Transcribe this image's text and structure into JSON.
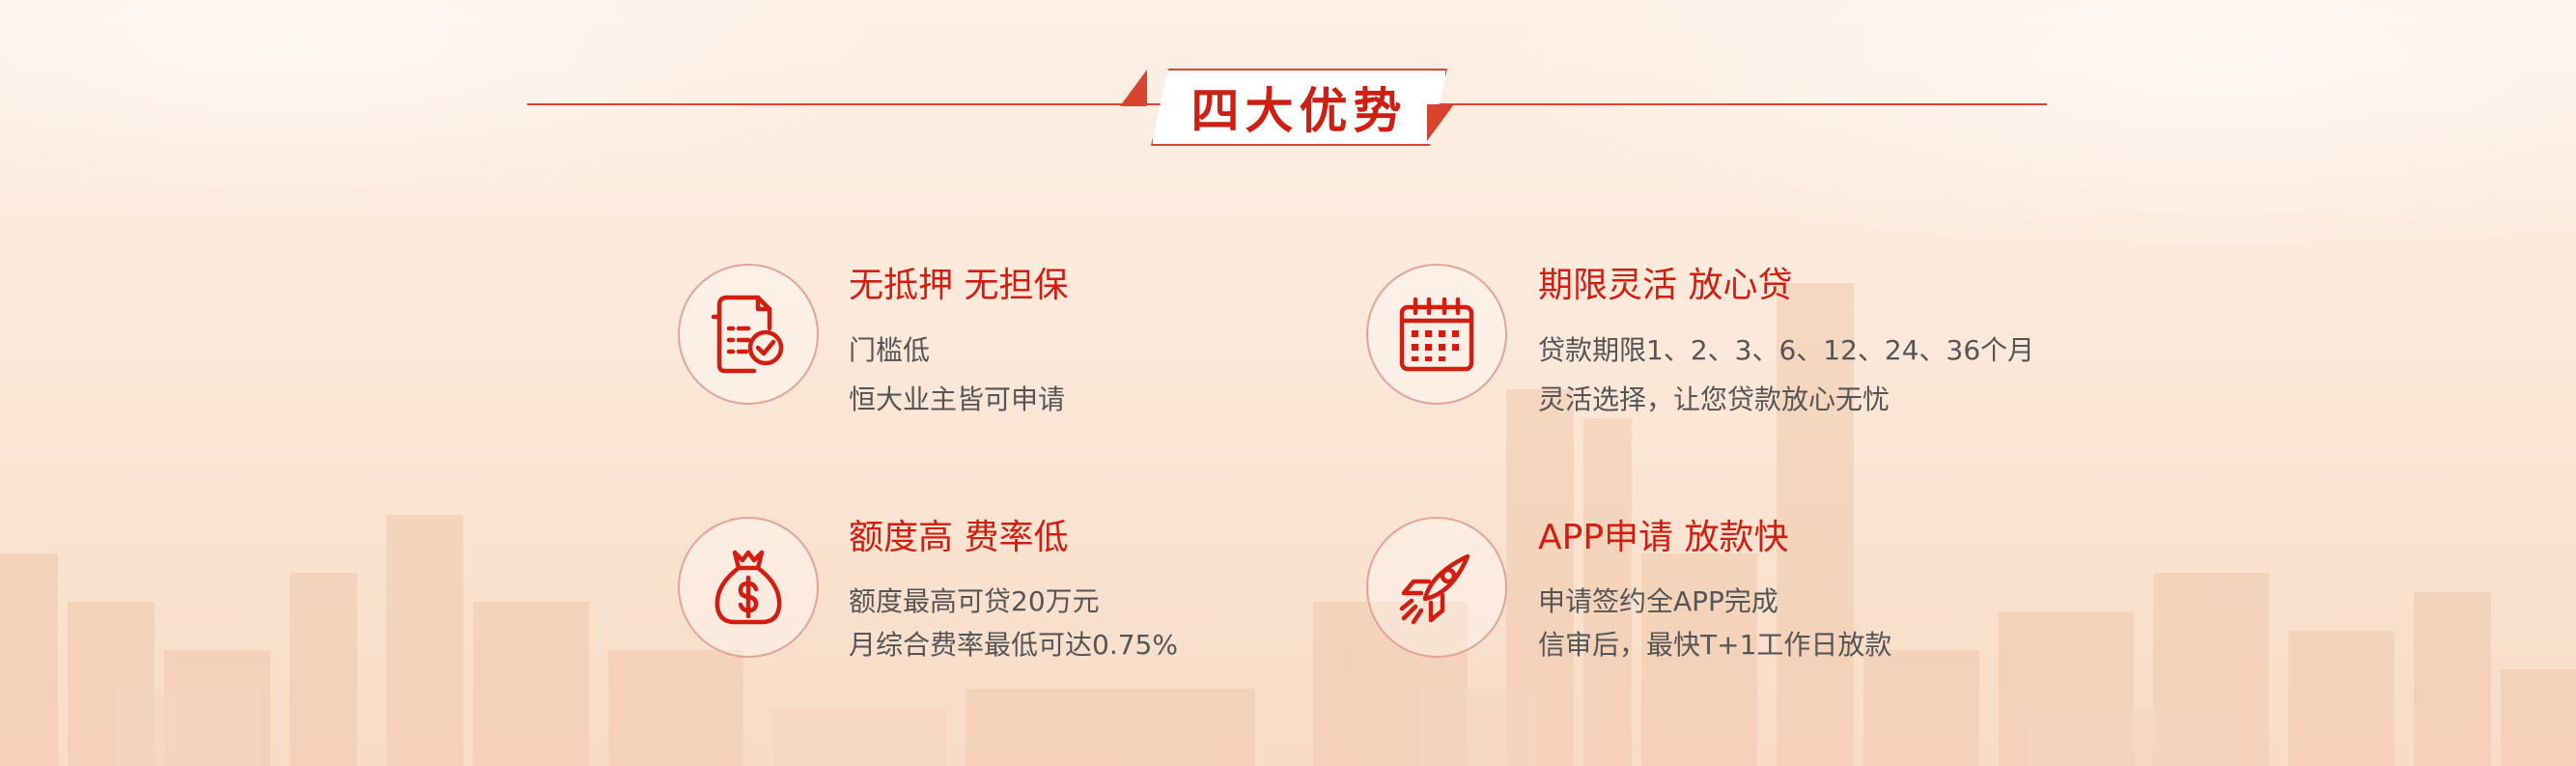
{
  "section_title": "四大优势",
  "features": [
    {
      "icon": "document-check-icon",
      "title": "无抵押 无担保",
      "lines": [
        "门槛低",
        "恒大业主皆可申请"
      ]
    },
    {
      "icon": "calendar-icon",
      "title": "期限灵活 放心贷",
      "lines": [
        "贷款期限1、2、3、6、12、24、36个月",
        "灵活选择，让您贷款放心无忧"
      ]
    },
    {
      "icon": "money-bag-icon",
      "title": "额度高 费率低",
      "lines": [
        "额度最高可贷20万元",
        "月综合费率最低可达0.75%"
      ]
    },
    {
      "icon": "rocket-icon",
      "title": "APP申请 放款快",
      "lines": [
        "申请签约全APP完成",
        "信审后，最快T+1工作日放款"
      ]
    }
  ],
  "colors": {
    "accent": "#d21d10",
    "line": "#d8442f",
    "text": "#555555",
    "background": "#fbe6d5"
  }
}
